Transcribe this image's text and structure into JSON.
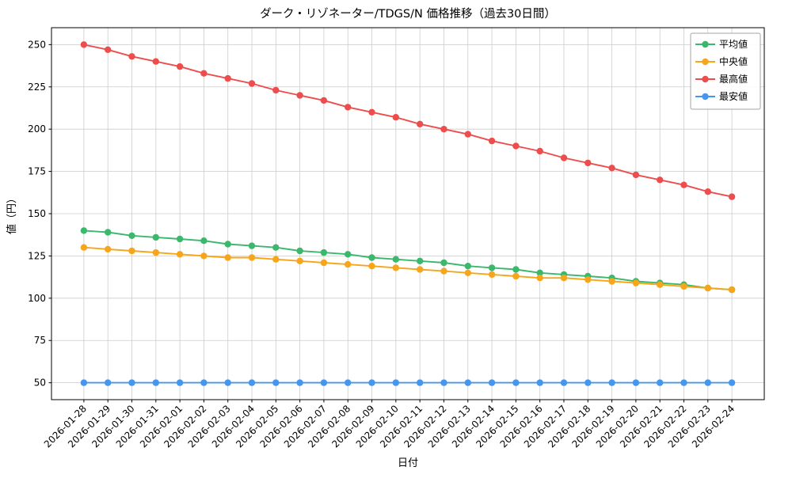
{
  "chart_data": {
    "type": "line",
    "title": "ダーク・リゾネーター/TDGS/N 価格推移（過去30日間）",
    "xlabel": "日付",
    "ylabel": "値（円）",
    "ylim": [
      40,
      260
    ],
    "yticks": [
      50,
      75,
      100,
      125,
      150,
      175,
      200,
      225,
      250
    ],
    "grid": true,
    "legend_position": "upper-right",
    "background": "#ffffff",
    "grid_color": "#cccccc",
    "axis_color": "#000000",
    "categories": [
      "2026-01-28",
      "2026-01-29",
      "2026-01-30",
      "2026-01-31",
      "2026-02-01",
      "2026-02-02",
      "2026-02-03",
      "2026-02-04",
      "2026-02-05",
      "2026-02-06",
      "2026-02-07",
      "2026-02-08",
      "2026-02-09",
      "2026-02-10",
      "2026-02-11",
      "2026-02-12",
      "2026-02-13",
      "2026-02-14",
      "2026-02-15",
      "2026-02-16",
      "2026-02-17",
      "2026-02-18",
      "2026-02-19",
      "2026-02-20",
      "2026-02-21",
      "2026-02-22",
      "2026-02-23",
      "2026-02-24"
    ],
    "series": [
      {
        "key": "avg",
        "name": "平均値",
        "color": "#3bb86b",
        "values": [
          140,
          139,
          137,
          136,
          135,
          134,
          132,
          131,
          130,
          128,
          127,
          126,
          124,
          123,
          122,
          121,
          119,
          118,
          117,
          115,
          114,
          113,
          112,
          110,
          109,
          108,
          106,
          105
        ]
      },
      {
        "key": "median",
        "name": "中央値",
        "color": "#f7a51b",
        "values": [
          130,
          129,
          128,
          127,
          126,
          125,
          124,
          124,
          123,
          122,
          121,
          120,
          119,
          118,
          117,
          116,
          115,
          114,
          113,
          112,
          112,
          111,
          110,
          109,
          108,
          107,
          106,
          105
        ]
      },
      {
        "key": "max",
        "name": "最高値",
        "color": "#ee4d4d",
        "values": [
          250,
          247,
          243,
          240,
          237,
          233,
          230,
          227,
          223,
          220,
          217,
          213,
          210,
          207,
          203,
          200,
          197,
          193,
          190,
          187,
          183,
          180,
          177,
          173,
          170,
          167,
          163,
          160
        ]
      },
      {
        "key": "min",
        "name": "最安値",
        "color": "#4596ec",
        "values": [
          50,
          50,
          50,
          50,
          50,
          50,
          50,
          50,
          50,
          50,
          50,
          50,
          50,
          50,
          50,
          50,
          50,
          50,
          50,
          50,
          50,
          50,
          50,
          50,
          50,
          50,
          50,
          50
        ]
      }
    ]
  }
}
